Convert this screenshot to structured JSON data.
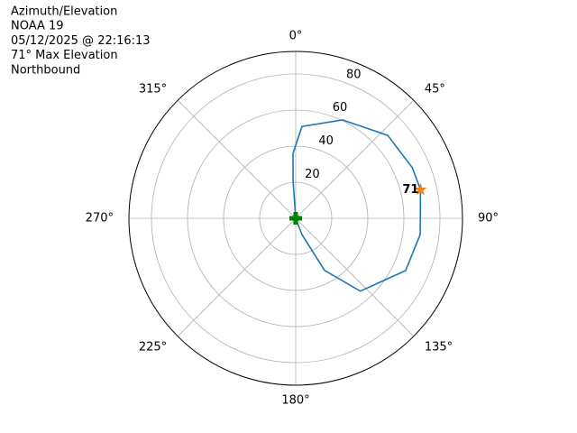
{
  "chart_data": {
    "type": "polar",
    "title_lines": [
      "Azimuth/Elevation",
      "NOAA 19",
      "05/12/2025 @ 22:16:13",
      "71° Max Elevation",
      "Northbound"
    ],
    "theta_zero": "N",
    "theta_direction": "clockwise",
    "rlim": [
      0,
      92.5
    ],
    "rticks": [
      20,
      40,
      60,
      80
    ],
    "thetaticks": [
      {
        "value": 0,
        "label": "0°"
      },
      {
        "value": 45,
        "label": "45°"
      },
      {
        "value": 90,
        "label": "90°"
      },
      {
        "value": 135,
        "label": "135°"
      },
      {
        "value": 180,
        "label": "180°"
      },
      {
        "value": 225,
        "label": "225°"
      },
      {
        "value": 270,
        "label": "270°"
      },
      {
        "value": 315,
        "label": "315°"
      }
    ],
    "grid": true,
    "track": {
      "color": "#1f77b4",
      "theta": [
        0,
        356,
        357.6,
        3.9,
        25.5,
        48,
        66.6,
        77.1,
        97.4,
        115.4,
        138.4,
        151,
        159,
        0
      ],
      "r": [
        0,
        21,
        36,
        51,
        60.4,
        68.7,
        70.5,
        71,
        69.6,
        67.5,
        54,
        33,
        9.7,
        0
      ]
    },
    "max_point": {
      "theta": 77.1,
      "r": 71,
      "color": "#ff7f0e"
    },
    "start_point": {
      "theta": 0,
      "r": 0,
      "color": "#008000"
    }
  }
}
